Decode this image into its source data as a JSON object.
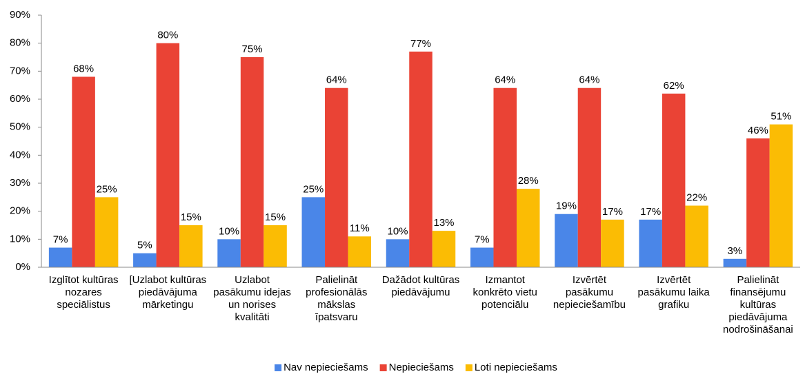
{
  "chart_data": {
    "type": "bar",
    "categories": [
      "Izglītot kultūras nozares speciālistus",
      "[Uzlabot kultūras piedāvājuma mārketingu",
      "Uzlabot pasākumu idejas un norises kvalitāti",
      "Palielināt profesionālās mākslas īpatsvaru",
      "Dažādot kultūras piedāvājumu",
      "Izmantot konkrēto vietu potenciālu",
      "Izvērtēt pasākumu nepieciešamību",
      "Izvērtēt pasākumu laika grafiku",
      "Palielināt finansējumu kultūras piedāvājuma nodrošināšanai"
    ],
    "series": [
      {
        "name": "Nav nepieciešams",
        "color": "#4a86e8",
        "values": [
          7,
          5,
          10,
          25,
          10,
          7,
          19,
          17,
          3
        ],
        "value_labels": [
          "7%",
          "5%",
          "10%",
          "25%",
          "10%",
          "7%",
          "19%",
          "17%",
          "3%"
        ]
      },
      {
        "name": "Nepieciešams",
        "color": "#ea4335",
        "values": [
          68,
          80,
          75,
          64,
          77,
          64,
          64,
          62,
          46
        ],
        "value_labels": [
          "68%",
          "80%",
          "75%",
          "64%",
          "77%",
          "64%",
          "64%",
          "62%",
          "46%"
        ]
      },
      {
        "name": "Loti nepieciešams",
        "color": "#fbbc04",
        "values": [
          25,
          15,
          15,
          11,
          13,
          28,
          17,
          22,
          51
        ],
        "value_labels": [
          "25%",
          "15%",
          "15%",
          "11%",
          "13%",
          "28%",
          "17%",
          "22%",
          "51%"
        ]
      }
    ],
    "ylim": [
      0,
      90
    ],
    "yticks": [
      {
        "value": 0,
        "label": "0%"
      },
      {
        "value": 10,
        "label": "10%"
      },
      {
        "value": 20,
        "label": "20%"
      },
      {
        "value": 30,
        "label": "30%"
      },
      {
        "value": 40,
        "label": "40%"
      },
      {
        "value": 50,
        "label": "50%"
      },
      {
        "value": 60,
        "label": "60%"
      },
      {
        "value": 70,
        "label": "70%"
      },
      {
        "value": 80,
        "label": "80%"
      },
      {
        "value": 90,
        "label": "90%"
      }
    ],
    "grid": false,
    "legend": "bottom"
  }
}
